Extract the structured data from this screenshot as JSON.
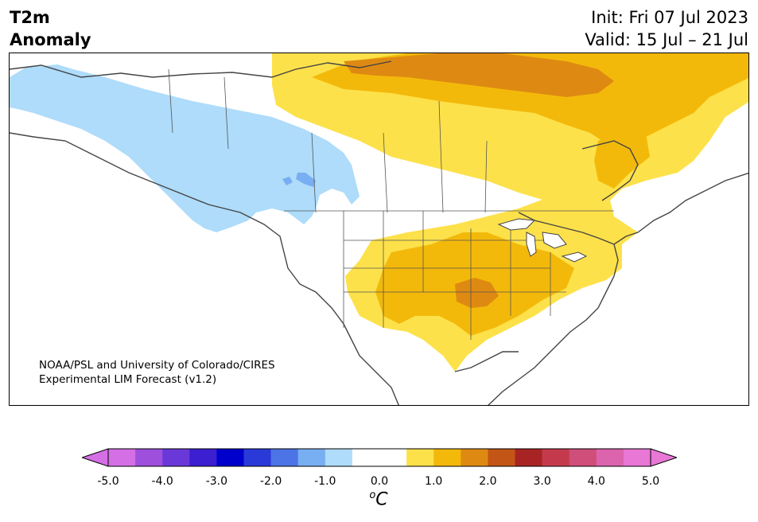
{
  "header": {
    "title_line1": "T2m",
    "title_line2": "Anomaly",
    "init": "Init: Fri 07 Jul 2023",
    "valid": "Valid: 15 Jul – 21 Jul"
  },
  "credit": {
    "line1": "NOAA/PSL and University of Colorado/CIRES",
    "line2": "Experimental LIM Forecast (v1.2)"
  },
  "colorbar": {
    "unit_symbol": "o",
    "unit_letter": "C",
    "ticks": [
      "-5.0",
      "-4.0",
      "-3.0",
      "-2.0",
      "-1.0",
      "0.0",
      "1.0",
      "2.0",
      "3.0",
      "4.0",
      "5.0"
    ],
    "colors": [
      "#d46fe6",
      "#9e4fdc",
      "#6a38d8",
      "#3b1fd0",
      "#0000cd",
      "#2a3ad8",
      "#4d74e6",
      "#78aef2",
      "#aedcfa",
      "#ffffff",
      "#ffffff",
      "#fde14a",
      "#f3b90a",
      "#de8a12",
      "#c35516",
      "#a82424",
      "#c43a4c",
      "#cf4e7a",
      "#dc63ad",
      "#e877d6"
    ],
    "extend_low_color": "#d46fe6",
    "extend_high_color": "#e877d6"
  },
  "map": {
    "region": "North America",
    "anomaly_colors": {
      "light_blue": "#aedcfa",
      "mid_blue": "#78aef2",
      "yellow": "#fde14a",
      "gold": "#f3b90a",
      "orange": "#de8a12"
    }
  }
}
